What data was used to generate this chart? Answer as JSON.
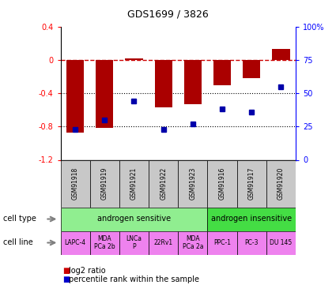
{
  "title": "GDS1699 / 3826",
  "samples": [
    "GSM91918",
    "GSM91919",
    "GSM91921",
    "GSM91922",
    "GSM91923",
    "GSM91916",
    "GSM91917",
    "GSM91920"
  ],
  "log2_ratio": [
    -0.87,
    -0.82,
    0.02,
    -0.57,
    -0.53,
    -0.3,
    -0.22,
    0.13
  ],
  "percentile_rank": [
    23,
    30,
    44,
    23,
    27,
    38,
    36,
    55
  ],
  "ylim_left": [
    -1.2,
    0.4
  ],
  "ylim_right": [
    0,
    100
  ],
  "yticks_left": [
    -1.2,
    -0.8,
    -0.4,
    0,
    0.4
  ],
  "yticks_right": [
    0,
    25,
    50,
    75,
    100
  ],
  "cell_type_groups": [
    {
      "label": "androgen sensitive",
      "span": [
        0,
        5
      ],
      "color": "#90EE90"
    },
    {
      "label": "androgen insensitive",
      "span": [
        5,
        8
      ],
      "color": "#44DD44"
    }
  ],
  "cell_lines": [
    {
      "label": "LAPC-4",
      "span": [
        0,
        1
      ]
    },
    {
      "label": "MDA\nPCa 2b",
      "span": [
        1,
        2
      ]
    },
    {
      "label": "LNCa\nP",
      "span": [
        2,
        3
      ]
    },
    {
      "label": "22Rv1",
      "span": [
        3,
        4
      ]
    },
    {
      "label": "MDA\nPCa 2a",
      "span": [
        4,
        5
      ]
    },
    {
      "label": "PPC-1",
      "span": [
        5,
        6
      ]
    },
    {
      "label": "PC-3",
      "span": [
        6,
        7
      ]
    },
    {
      "label": "DU 145",
      "span": [
        7,
        8
      ]
    }
  ],
  "bar_color": "#AA0000",
  "dot_color": "#0000AA",
  "hline_color": "#CC0000",
  "dotline_color": "#000000",
  "sample_box_color": "#C8C8C8",
  "cell_line_color": "#EE82EE",
  "legend_bar_color": "#CC0000",
  "legend_dot_color": "#0000CC",
  "row_label_color": "#808080"
}
